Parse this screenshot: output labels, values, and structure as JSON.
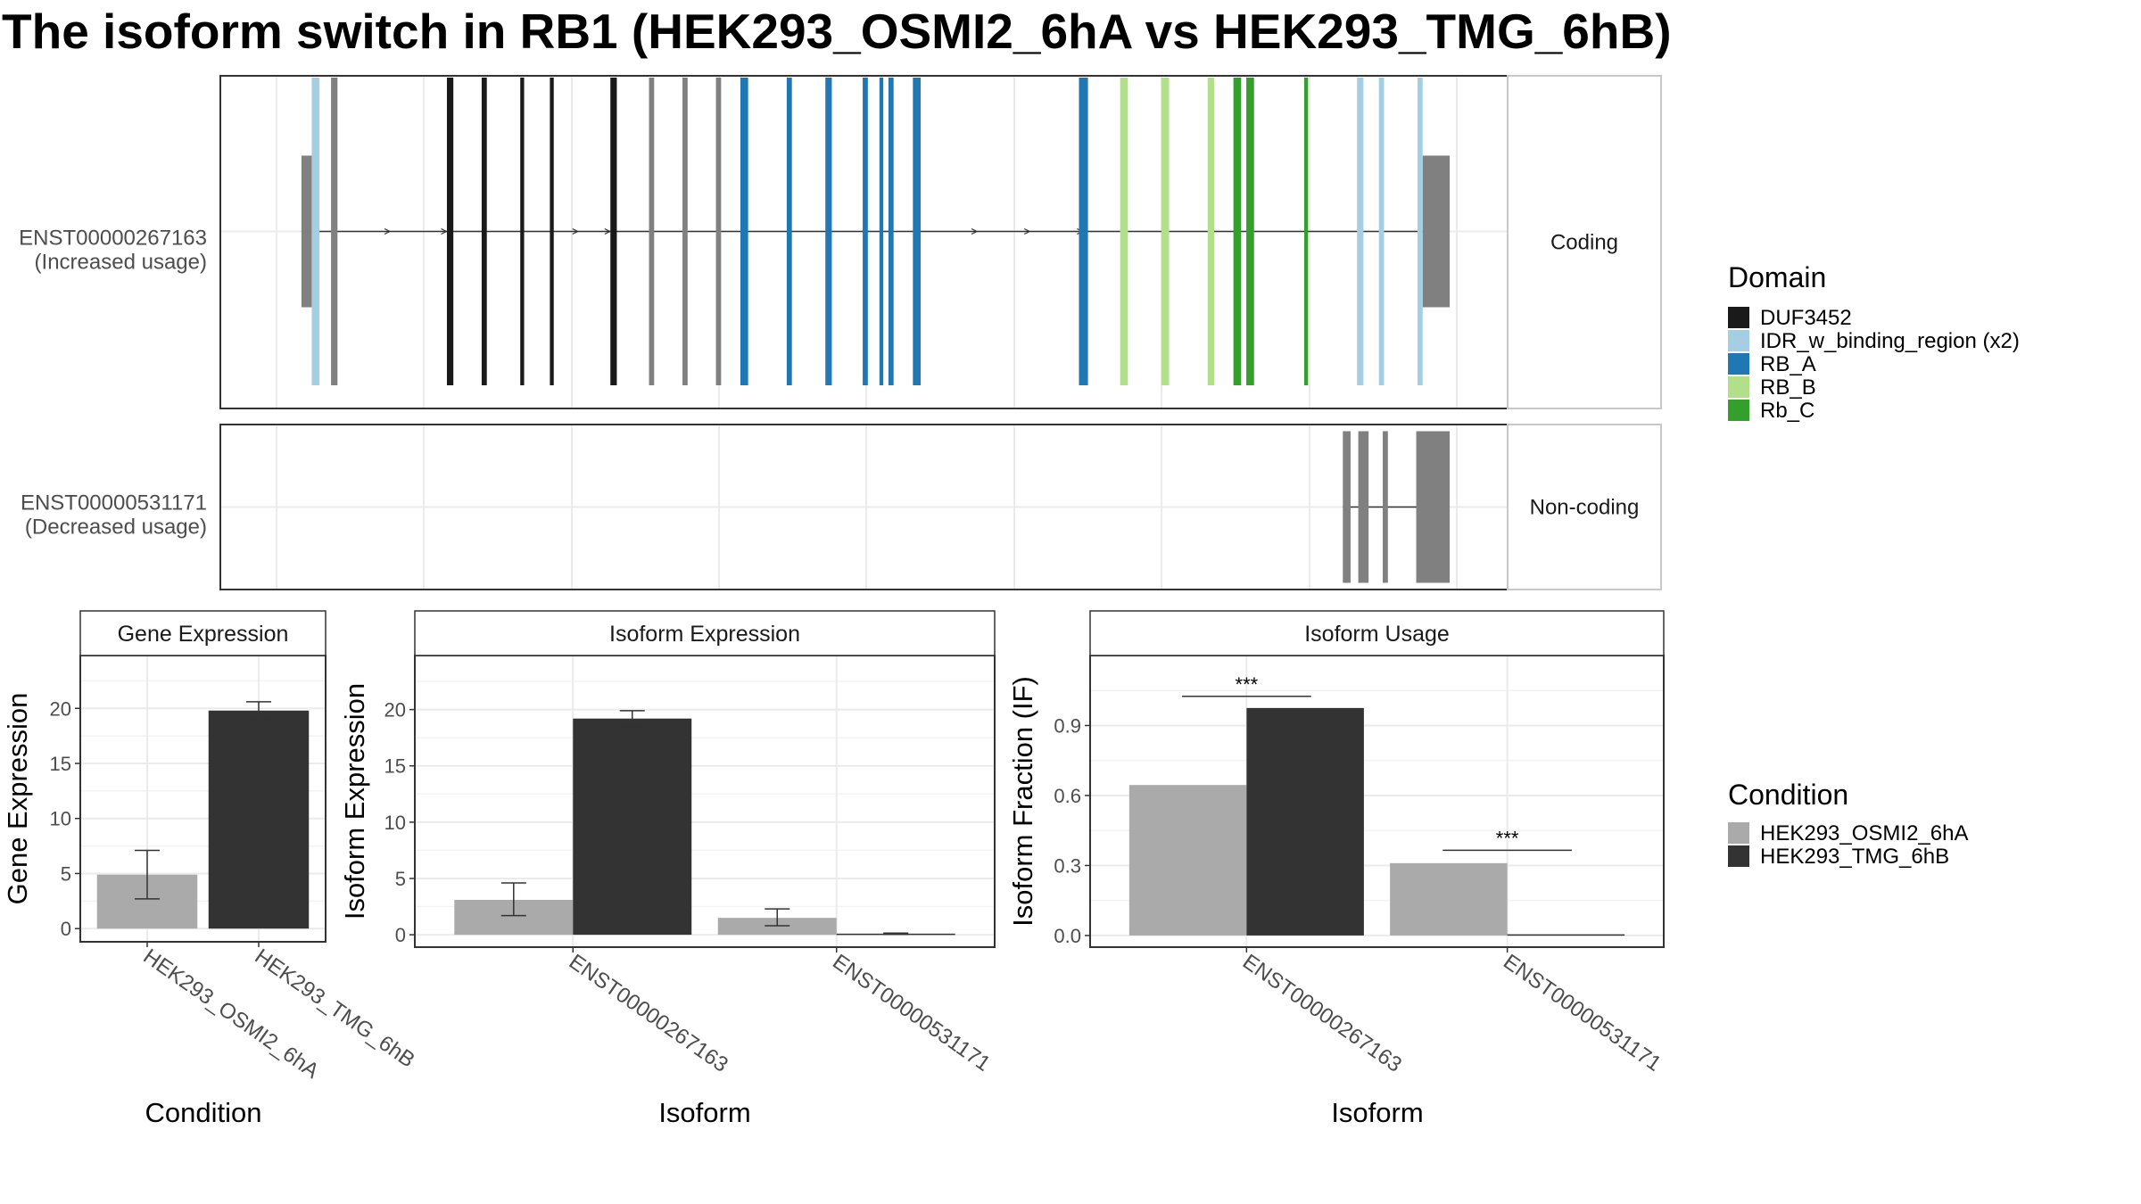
{
  "title": "The isoform switch in RB1 (HEK293_OSMI2_6hA vs HEK293_TMG_6hB)",
  "colors": {
    "DUF3452": "#1a1a1a",
    "IDR_w_binding_region (x2)": "#a6cee3",
    "RB_A": "#1f78b4",
    "RB_B": "#b2df8a",
    "Rb_C": "#33a02c",
    "no_domain": "#808080",
    "HEK293_OSMI2_6hA": "#aaaaaa",
    "HEK293_TMG_6hB": "#333333"
  },
  "transcripts": {
    "coding": {
      "id": "ENST00000267163",
      "usage": "(Increased usage)",
      "strip": "Coding",
      "utr5": [
        0.063,
        0.071
      ],
      "utr3": [
        0.934,
        0.955
      ],
      "exons": [
        {
          "x": 0.071,
          "w": 0.006,
          "domain": "IDR_w_binding_region (x2)"
        },
        {
          "x": 0.086,
          "w": 0.005,
          "domain": "no_domain"
        },
        {
          "x": 0.176,
          "w": 0.005,
          "domain": "DUF3452"
        },
        {
          "x": 0.203,
          "w": 0.004,
          "domain": "DUF3452"
        },
        {
          "x": 0.233,
          "w": 0.003,
          "domain": "DUF3452"
        },
        {
          "x": 0.256,
          "w": 0.003,
          "domain": "DUF3452"
        },
        {
          "x": 0.303,
          "w": 0.005,
          "domain": "DUF3452"
        },
        {
          "x": 0.333,
          "w": 0.004,
          "domain": "no_domain"
        },
        {
          "x": 0.359,
          "w": 0.004,
          "domain": "no_domain"
        },
        {
          "x": 0.385,
          "w": 0.004,
          "domain": "no_domain"
        },
        {
          "x": 0.404,
          "w": 0.006,
          "domain": "RB_A"
        },
        {
          "x": 0.44,
          "w": 0.004,
          "domain": "RB_A"
        },
        {
          "x": 0.47,
          "w": 0.005,
          "domain": "RB_A"
        },
        {
          "x": 0.499,
          "w": 0.004,
          "domain": "RB_A"
        },
        {
          "x": 0.512,
          "w": 0.003,
          "domain": "RB_A"
        },
        {
          "x": 0.519,
          "w": 0.004,
          "domain": "RB_A"
        },
        {
          "x": 0.538,
          "w": 0.006,
          "domain": "RB_A"
        },
        {
          "x": 0.667,
          "w": 0.007,
          "domain": "RB_A"
        },
        {
          "x": 0.699,
          "w": 0.006,
          "domain": "RB_B"
        },
        {
          "x": 0.731,
          "w": 0.006,
          "domain": "RB_B"
        },
        {
          "x": 0.767,
          "w": 0.005,
          "domain": "RB_B"
        },
        {
          "x": 0.787,
          "w": 0.006,
          "domain": "Rb_C"
        },
        {
          "x": 0.797,
          "w": 0.006,
          "domain": "Rb_C"
        },
        {
          "x": 0.842,
          "w": 0.003,
          "domain": "Rb_C"
        },
        {
          "x": 0.883,
          "w": 0.005,
          "domain": "IDR_w_binding_region (x2)"
        },
        {
          "x": 0.9,
          "w": 0.004,
          "domain": "IDR_w_binding_region (x2)"
        },
        {
          "x": 0.93,
          "w": 0.004,
          "domain": "IDR_w_binding_region (x2)"
        }
      ],
      "arrows": [
        0.131,
        0.175,
        0.277,
        0.302,
        0.587,
        0.628,
        0.669
      ]
    },
    "noncoding": {
      "id": "ENST00000531171",
      "usage": "(Decreased usage)",
      "strip": "Non-coding",
      "exons": [
        [
          0.872,
          0.878
        ],
        [
          0.884,
          0.892
        ],
        [
          0.903,
          0.907
        ],
        [
          0.929,
          0.955
        ]
      ]
    }
  },
  "legend_domain": {
    "title": "Domain",
    "items": [
      "DUF3452",
      "IDR_w_binding_region (x2)",
      "RB_A",
      "RB_B",
      "Rb_C"
    ]
  },
  "legend_condition": {
    "title": "Condition",
    "items": [
      "HEK293_OSMI2_6hA",
      "HEK293_TMG_6hB"
    ]
  },
  "chart_data": [
    {
      "type": "bar",
      "title": "Gene Expression",
      "xlabel": "Condition",
      "ylabel": "Gene Expression",
      "categories": [
        "HEK293_OSMI2_6hA",
        "HEK293_TMG_6hB"
      ],
      "values": [
        4.9,
        19.8
      ],
      "error_low": [
        2.7,
        19.0
      ],
      "error_high": [
        7.1,
        20.6
      ],
      "ylim": [
        -1.2,
        24.8
      ],
      "yticks": [
        0,
        5,
        10,
        15,
        20
      ]
    },
    {
      "type": "bar",
      "title": "Isoform Expression",
      "xlabel": "Isoform",
      "ylabel": "Isoform Expression",
      "categories": [
        "ENST00000267163",
        "ENST00000531171"
      ],
      "series": [
        {
          "name": "HEK293_OSMI2_6hA",
          "values": [
            3.1,
            1.5
          ],
          "error_low": [
            1.7,
            0.8
          ],
          "error_high": [
            4.6,
            2.3
          ]
        },
        {
          "name": "HEK293_TMG_6hB",
          "values": [
            19.2,
            0.1
          ],
          "error_low": [
            18.5,
            0.05
          ],
          "error_high": [
            19.9,
            0.15
          ]
        }
      ],
      "ylim": [
        -1.1,
        24.8
      ],
      "yticks": [
        0,
        5,
        10,
        15,
        20
      ]
    },
    {
      "type": "bar",
      "title": "Isoform Usage",
      "xlabel": "Isoform",
      "ylabel": "Isoform Fraction (IF)",
      "categories": [
        "ENST00000267163",
        "ENST00000531171"
      ],
      "series": [
        {
          "name": "HEK293_OSMI2_6hA",
          "values": [
            0.645,
            0.31
          ]
        },
        {
          "name": "HEK293_TMG_6hB",
          "values": [
            0.975,
            0.005
          ]
        }
      ],
      "significance": [
        "***",
        "***"
      ],
      "significance_y": [
        1.025,
        0.365
      ],
      "ylim": [
        -0.05,
        1.2
      ],
      "yticks": [
        0.0,
        0.3,
        0.6,
        0.9
      ],
      "ytick_labels": [
        "0.0",
        "0.3",
        "0.6",
        "0.9"
      ]
    }
  ]
}
